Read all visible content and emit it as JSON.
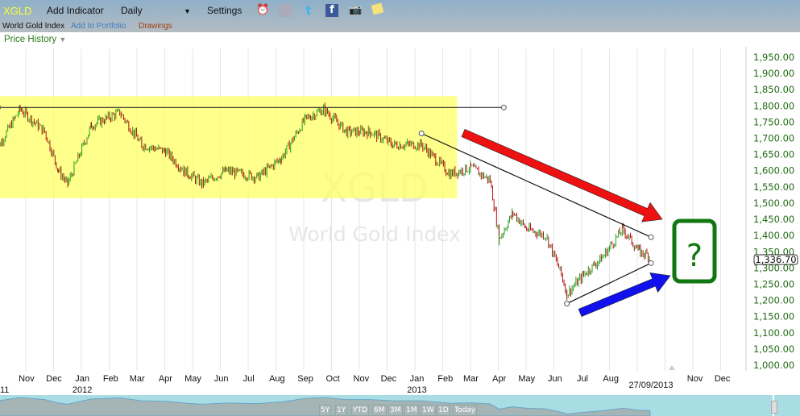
{
  "toolbar": {
    "symbol": "XGLD",
    "add_indicator": "Add Indicator",
    "interval": "Daily",
    "settings": "Settings",
    "icons": [
      "alarm-clock-icon",
      "database-icon",
      "twitter-icon",
      "facebook-icon",
      "camera-icon",
      "notes-icon"
    ]
  },
  "subbar": {
    "name": "World Gold Index",
    "add_portfolio": "Add to Portfolio",
    "drawings": "Drawings"
  },
  "panel": {
    "title": "Price History"
  },
  "chart_data": {
    "type": "candlestick",
    "watermark": {
      "symbol": "XGLD",
      "name": "World Gold Index"
    },
    "y_ticks": [
      1000,
      1050,
      1100,
      1150,
      1200,
      1250,
      1300,
      1350,
      1400,
      1450,
      1500,
      1550,
      1600,
      1650,
      1700,
      1750,
      1800,
      1850,
      1900,
      1950
    ],
    "y_tick_labels": [
      "1,000.00",
      "1,050.00",
      "1,100.00",
      "1,150.00",
      "1,200.00",
      "1,250.00",
      "1,300.00",
      "1,350.00",
      "1,400.00",
      "1,450.00",
      "1,500.00",
      "1,550.00",
      "1,600.00",
      "1,650.00",
      "1,700.00",
      "1,750.00",
      "1,800.00",
      "1,850.00",
      "1,900.00",
      "1,950.00"
    ],
    "ylim": [
      1000,
      1975
    ],
    "x_range": [
      "2011-10-15",
      "2014-01-01"
    ],
    "months": [
      {
        "label": "Nov",
        "date": "2011-11-15"
      },
      {
        "label": "Dec",
        "date": "2011-12-15"
      },
      {
        "label": "Jan",
        "date": "2012-01-15",
        "year": "2012"
      },
      {
        "label": "Feb",
        "date": "2012-02-15"
      },
      {
        "label": "Mar",
        "date": "2012-03-15"
      },
      {
        "label": "Apr",
        "date": "2012-04-15"
      },
      {
        "label": "May",
        "date": "2012-05-15"
      },
      {
        "label": "Jun",
        "date": "2012-06-15"
      },
      {
        "label": "Jul",
        "date": "2012-07-15"
      },
      {
        "label": "Aug",
        "date": "2012-08-15"
      },
      {
        "label": "Sep",
        "date": "2012-09-15"
      },
      {
        "label": "Oct",
        "date": "2012-10-15"
      },
      {
        "label": "Nov",
        "date": "2012-11-15"
      },
      {
        "label": "Dec",
        "date": "2012-12-15"
      },
      {
        "label": "Jan",
        "date": "2013-01-15",
        "year": "2013"
      },
      {
        "label": "Feb",
        "date": "2013-02-15"
      },
      {
        "label": "Mar",
        "date": "2013-03-15"
      },
      {
        "label": "Apr",
        "date": "2013-04-15"
      },
      {
        "label": "May",
        "date": "2013-05-15"
      },
      {
        "label": "Jun",
        "date": "2013-06-15"
      },
      {
        "label": "Jul",
        "date": "2013-07-15"
      },
      {
        "label": "Aug",
        "date": "2013-08-15"
      },
      {
        "label": "Nov",
        "date": "2013-11-15"
      },
      {
        "label": "Dec",
        "date": "2013-12-15"
      }
    ],
    "year_fragment": "11",
    "cursor_date": "27/09/2013",
    "last_price": "1,336.70",
    "series": [
      [
        "2011-10-10",
        1650
      ],
      [
        "2011-11-08",
        1790
      ],
      [
        "2011-12-05",
        1720
      ],
      [
        "2011-12-20",
        1600
      ],
      [
        "2011-12-30",
        1560
      ],
      [
        "2012-01-25",
        1740
      ],
      [
        "2012-02-25",
        1780
      ],
      [
        "2012-03-20",
        1680
      ],
      [
        "2012-04-15",
        1660
      ],
      [
        "2012-05-05",
        1600
      ],
      [
        "2012-05-25",
        1560
      ],
      [
        "2012-06-20",
        1600
      ],
      [
        "2012-07-25",
        1580
      ],
      [
        "2012-08-20",
        1640
      ],
      [
        "2012-09-15",
        1760
      ],
      [
        "2012-10-05",
        1790
      ],
      [
        "2012-10-30",
        1720
      ],
      [
        "2012-11-25",
        1720
      ],
      [
        "2012-12-20",
        1680
      ],
      [
        "2013-01-20",
        1680
      ],
      [
        "2013-02-20",
        1590
      ],
      [
        "2013-03-15",
        1610
      ],
      [
        "2013-04-05",
        1570
      ],
      [
        "2013-04-15",
        1390
      ],
      [
        "2013-04-30",
        1470
      ],
      [
        "2013-05-15",
        1420
      ],
      [
        "2013-06-05",
        1400
      ],
      [
        "2013-06-22",
        1280
      ],
      [
        "2013-06-28",
        1220
      ],
      [
        "2013-07-20",
        1290
      ],
      [
        "2013-08-05",
        1330
      ],
      [
        "2013-08-28",
        1420
      ],
      [
        "2013-09-15",
        1350
      ],
      [
        "2013-09-27",
        1336.7
      ]
    ],
    "annotations": {
      "highlight_zone": {
        "from": "2011-10-12",
        "to": "2013-02-28",
        "low": 1515,
        "high": 1830,
        "color": "#ffff66"
      },
      "resistance": {
        "from": [
          "2011-10-15",
          1795
        ],
        "to": [
          "2013-04-20",
          1795
        ]
      },
      "upper_trend": {
        "from": [
          "2013-01-20",
          1715
        ],
        "to": [
          "2013-09-28",
          1395
        ]
      },
      "lower_trend": {
        "from": [
          "2013-06-28",
          1190
        ],
        "to": [
          "2013-09-28",
          1315
        ]
      },
      "down_arrow_color": "#ee1111",
      "up_arrow_color": "#1111ee",
      "question_box": {
        "text": "?",
        "color": "#117711"
      }
    },
    "up_color": "#2a9a1a",
    "down_color": "#b01010",
    "grid": true
  },
  "navigator": {
    "ranges": [
      "5Y",
      "1Y",
      "YTD",
      "6M",
      "3M",
      "1M",
      "1W",
      "1D",
      "Today"
    ]
  }
}
